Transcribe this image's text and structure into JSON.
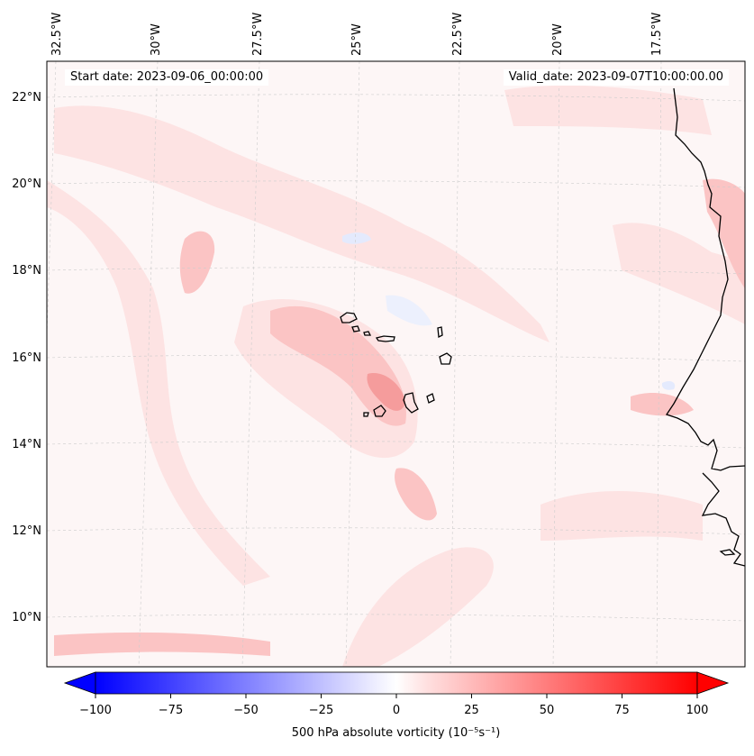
{
  "header": {
    "start_date": "Start date: 2023-09-06_00:00:00",
    "valid_date": "Valid_date: 2023-09-07T10:00:00.00"
  },
  "map": {
    "lon_labels": [
      "32.5°W",
      "30°W",
      "27.5°W",
      "25°W",
      "22.5°W",
      "20°W",
      "17.5°W"
    ],
    "lat_labels": [
      "22°N",
      "20°N",
      "18°N",
      "16°N",
      "14°N",
      "12°N",
      "10°N"
    ],
    "islands_label": "Cape Verde Islands (coastlines)",
    "colors": {
      "background": "#fdf6f6",
      "light_pink": "#fde3e3",
      "medium_pink": "#fbc4c4",
      "strong_pink": "#f59c9c",
      "pale_blue": "#ecf0fd",
      "coast": "#000000",
      "grid": "#cccccc"
    }
  },
  "colorbar": {
    "title": "500 hPa absolute vorticity (10⁻⁵s⁻¹)",
    "ticks": [
      "−100",
      "−75",
      "−50",
      "−25",
      "0",
      "25",
      "50",
      "75",
      "100"
    ],
    "min": -100,
    "max": 100,
    "color_low": "#0000ff",
    "color_high": "#ff0000"
  },
  "chart_data": {
    "type": "heatmap",
    "variable": "500 hPa absolute vorticity",
    "units": "10^-5 s^-1",
    "range": [
      -100,
      100
    ],
    "lon_range": [
      -33,
      -15.5
    ],
    "lat_range": [
      9,
      22.7
    ],
    "features": [
      {
        "name": "vorticity maximum near Fogo/Brava",
        "lon": -23.3,
        "lat": 15.0,
        "value": 35
      },
      {
        "name": "vorticity maximum west of Cape Verde",
        "lon": -28.5,
        "lat": 18.2,
        "value": 25
      },
      {
        "name": "vorticity band south",
        "lon": -23.0,
        "lat": 12.6,
        "value": 25
      },
      {
        "name": "vorticity band along 9.5N",
        "lon": -29.0,
        "lat": 9.4,
        "value": 20
      }
    ]
  }
}
